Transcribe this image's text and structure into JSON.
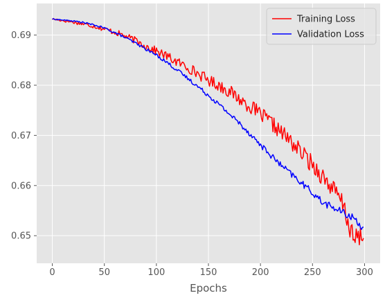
{
  "chart_data": {
    "type": "line",
    "xlabel": "Epochs",
    "ylabel": "",
    "title": "",
    "xlim": [
      -15,
      315
    ],
    "ylim": [
      0.6445,
      0.6963
    ],
    "xticks": [
      0,
      50,
      100,
      150,
      200,
      250,
      300
    ],
    "yticks": [
      0.65,
      0.66,
      0.67,
      0.68,
      0.69
    ],
    "ytick_labels": [
      "0.65",
      "0.66",
      "0.67",
      "0.68",
      "0.69"
    ],
    "grid": true,
    "legend_position": "top-right",
    "background_color": "#e5e5e5",
    "series": [
      {
        "name": "Training Loss",
        "color": "#ff0000",
        "x": [
          0,
          10,
          20,
          30,
          40,
          50,
          60,
          70,
          80,
          90,
          100,
          110,
          120,
          130,
          140,
          150,
          160,
          170,
          180,
          190,
          200,
          210,
          220,
          230,
          240,
          250,
          260,
          270,
          280,
          285,
          290,
          295,
          299
        ],
        "y": [
          0.6932,
          0.6929,
          0.6926,
          0.6922,
          0.6918,
          0.6912,
          0.6906,
          0.6898,
          0.6889,
          0.6878,
          0.6868,
          0.6858,
          0.6846,
          0.6836,
          0.6823,
          0.681,
          0.68,
          0.6788,
          0.6772,
          0.6758,
          0.6742,
          0.6725,
          0.6706,
          0.6686,
          0.6664,
          0.6642,
          0.6618,
          0.6592,
          0.656,
          0.652,
          0.649,
          0.65,
          0.6495
        ],
        "noise": 0.0008
      },
      {
        "name": "Validation Loss",
        "color": "#0000ff",
        "x": [
          0,
          10,
          20,
          30,
          40,
          50,
          60,
          70,
          80,
          90,
          100,
          110,
          120,
          130,
          140,
          150,
          160,
          170,
          180,
          190,
          200,
          210,
          220,
          230,
          240,
          250,
          260,
          270,
          280,
          290,
          299
        ],
        "y": [
          0.6932,
          0.693,
          0.6928,
          0.6925,
          0.692,
          0.6914,
          0.6905,
          0.6895,
          0.6884,
          0.6872,
          0.686,
          0.6846,
          0.683,
          0.6814,
          0.6797,
          0.678,
          0.6762,
          0.6743,
          0.6724,
          0.6703,
          0.6681,
          0.666,
          0.664,
          0.6622,
          0.6604,
          0.6586,
          0.6566,
          0.6556,
          0.6545,
          0.6535,
          0.6515
        ],
        "noise": 0.0003
      }
    ]
  }
}
